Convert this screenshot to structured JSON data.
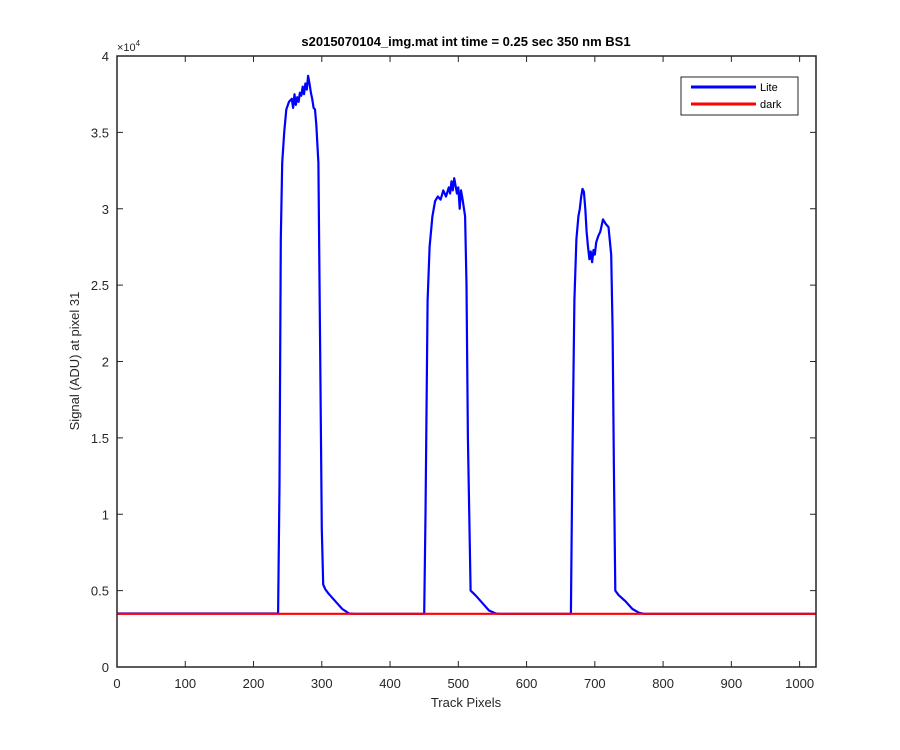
{
  "chart_data": {
    "type": "line",
    "title": "s2015070104_img.mat int time = 0.25 sec  350 nm BS1",
    "xlabel": "Track Pixels",
    "ylabel": "Signal (ADU) at pixel 31",
    "xlim": [
      0,
      1024
    ],
    "ylim": [
      0,
      40000
    ],
    "x_ticks": [
      0,
      100,
      200,
      300,
      400,
      500,
      600,
      700,
      800,
      900,
      1000
    ],
    "x_tick_labels": [
      "0",
      "100",
      "200",
      "300",
      "400",
      "500",
      "600",
      "700",
      "800",
      "900",
      "1000"
    ],
    "y_ticks": [
      0,
      5000,
      10000,
      15000,
      20000,
      25000,
      30000,
      35000,
      40000
    ],
    "y_tick_labels": [
      "0",
      "0.5",
      "1",
      "1.5",
      "2",
      "2.5",
      "3",
      "3.5",
      "4"
    ],
    "y_exponent_label": "×10",
    "y_exponent_power": "4",
    "grid": false,
    "legend_position": "top-right",
    "colors": {
      "lite": "#0000ff",
      "dark": "#ff0000"
    },
    "series": [
      {
        "name": "Lite",
        "color": "#0000ff",
        "x": [
          0,
          236,
          238,
          240,
          242,
          245,
          248,
          252,
          256,
          258,
          260,
          262,
          264,
          266,
          268,
          270,
          272,
          274,
          276,
          278,
          280,
          282,
          284,
          286,
          288,
          290,
          292,
          295,
          298,
          300,
          302,
          305,
          310,
          320,
          330,
          340,
          348,
          360,
          450,
          452,
          455,
          458,
          462,
          466,
          470,
          474,
          478,
          482,
          486,
          488,
          490,
          492,
          494,
          496,
          498,
          500,
          502,
          504,
          506,
          510,
          512,
          514,
          518,
          525,
          535,
          545,
          555,
          560,
          600,
          665,
          667,
          670,
          673,
          676,
          678,
          680,
          682,
          684,
          686,
          688,
          690,
          692,
          694,
          696,
          698,
          700,
          702,
          705,
          708,
          712,
          716,
          720,
          724,
          726,
          728,
          730,
          735,
          745,
          755,
          765,
          772,
          800,
          1024
        ],
        "y": [
          3500,
          3500,
          12000,
          28000,
          33000,
          35000,
          36500,
          37000,
          37200,
          36600,
          37500,
          36800,
          37300,
          37000,
          37600,
          37400,
          38000,
          37500,
          38200,
          37800,
          38700,
          38200,
          37600,
          37200,
          36600,
          36500,
          35500,
          33000,
          19000,
          9000,
          5400,
          5100,
          4800,
          4300,
          3800,
          3500,
          3480,
          3480,
          3480,
          10000,
          24000,
          27500,
          29500,
          30500,
          30800,
          30600,
          31200,
          30800,
          31400,
          31000,
          31800,
          31200,
          32000,
          31500,
          31000,
          31400,
          30000,
          31200,
          30700,
          29500,
          25000,
          15000,
          5000,
          4700,
          4200,
          3700,
          3500,
          3480,
          3480,
          3480,
          13000,
          24000,
          28000,
          29500,
          30000,
          30800,
          31300,
          31100,
          30000,
          28500,
          27500,
          26700,
          27200,
          26500,
          27300,
          27000,
          27800,
          28200,
          28500,
          29300,
          29000,
          28800,
          27000,
          22000,
          13000,
          5000,
          4700,
          4300,
          3800,
          3550,
          3480,
          3480,
          3480
        ]
      },
      {
        "name": "dark",
        "color": "#ff0000",
        "x": [
          0,
          1024
        ],
        "y": [
          3480,
          3480
        ]
      }
    ]
  }
}
